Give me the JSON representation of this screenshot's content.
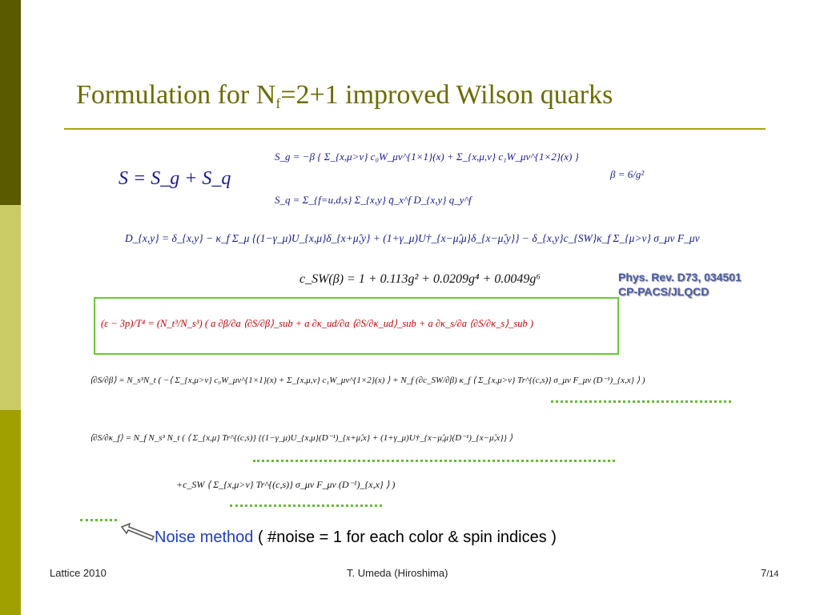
{
  "slide": {
    "title_main": "Formulation for N",
    "title_sub": "f",
    "title_rest": "=2+1 improved Wilson quarks",
    "equations": {
      "S_total": "S = S_g + S_q",
      "S_g": "S_g  =  −β { Σ_{x,μ>ν} c₀W_μν^{1×1}(x) + Σ_{x,μ,ν} c₁W_μν^{1×2}(x) }",
      "beta_def": "β = 6/g²",
      "S_q": "S_q  =  Σ_{f=u,d,s} Σ_{x,y} q̄_x^f D_{x,y} q_y^f",
      "D_xy": "D_{x,y} = δ_{x,y} − κ_f Σ_μ {(1−γ_μ)U_{x,μ}δ_{x+μ̂,y} + (1+γ_μ)U†_{x−μ̂,μ}δ_{x−μ̂,y}} − δ_{x,y}c_{SW}κ_f Σ_{μ>ν} σ_μν F_μν",
      "c_sw": "c_SW(β) = 1 + 0.113g² + 0.0209g⁴ + 0.0049g⁶",
      "trace_anomaly": "(ε − 3p)/T⁴ = (N_t³/N_s³) ( a ∂β/∂a ⟨∂S/∂β⟩_sub + a ∂κ_ud/∂a ⟨∂S/∂κ_ud⟩_sub + a ∂κ_s/∂a ⟨∂S/∂κ_s⟩_sub )",
      "dS_dbeta": "⟨∂S/∂β⟩  =  N_s³N_t ( −⟨ Σ_{x,μ>ν} c₀W_μν^{1×1}(x) + Σ_{x,μ,ν} c₁W_μν^{1×2}(x) ⟩ + N_f (∂c_SW/∂β) κ_f ⟨ Σ_{x,μ>ν} Tr^{(c,s)} σ_μν F_μν (D⁻¹)_{x,x} ⟩ )",
      "dS_dkappa_1": "⟨∂S/∂κ_f⟩  =  N_f N_s³ N_t ( ⟨ Σ_{x,μ} Tr^{(c,s)} {(1−γ_μ)U_{x,μ}(D⁻¹)_{x+μ̂,x} + (1+γ_μ)U†_{x−μ̂,μ}(D⁻¹)_{x−μ̂,x}} ⟩",
      "dS_dkappa_2": "+c_SW ⟨ Σ_{x,μ>ν} Tr^{(c,s)} σ_μν F_μν (D⁻¹)_{x,x} ⟩ )"
    },
    "reference_1": "Phys. Rev. D73, 034501",
    "reference_2": "CP-PACS/JLQCD",
    "noise_keyword": "Noise method",
    "noise_rest": " ( #noise = 1 for each color & spin indices )",
    "arrow_icon": "outline-arrow-icon"
  },
  "footer": {
    "left": "Lattice 2010",
    "center": "T. Umeda (Hiroshima)",
    "page": "7",
    "total": "/14"
  },
  "colors": {
    "sidebar_dark": "#5a5a00",
    "sidebar_light": "#cccc66",
    "sidebar_mid": "#a0a000",
    "title": "#6b6b00",
    "equation_blue": "#1a1a8c",
    "equation_red": "#c00000",
    "box_green": "#66cc33",
    "noise_blue": "#1f3fbf"
  }
}
